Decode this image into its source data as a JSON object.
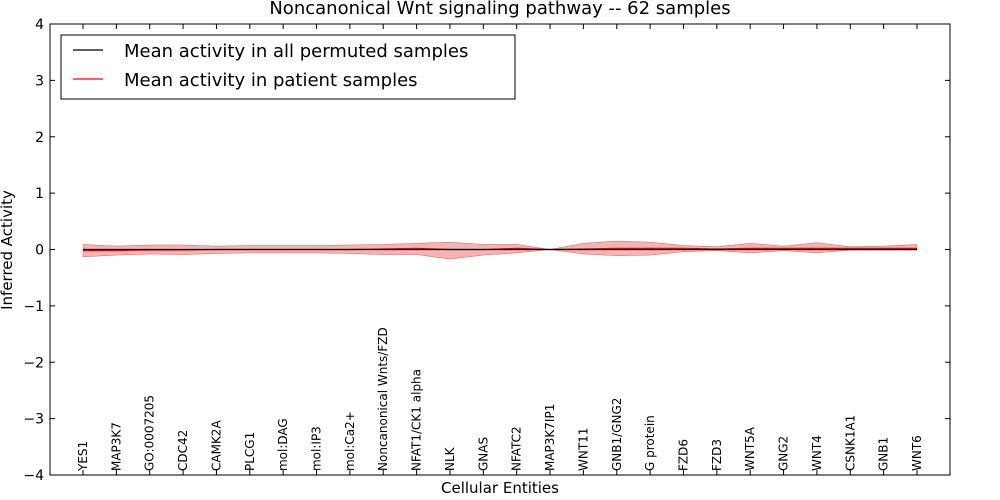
{
  "chart_data": {
    "type": "line",
    "title": "Noncanonical Wnt signaling pathway -- 62 samples",
    "xlabel": "Cellular Entities",
    "ylabel": "Inferred Activity",
    "ylim": [
      -4,
      4
    ],
    "yticks": [
      -4,
      -3,
      -2,
      -1,
      0,
      1,
      2,
      3,
      4
    ],
    "ytick_labels": [
      "−4",
      "−3",
      "−2",
      "−1",
      "0",
      "1",
      "2",
      "3",
      "4"
    ],
    "categories": [
      "YES1",
      "MAP3K7",
      "GO:0007205",
      "CDC42",
      "CAMK2A",
      "PLCG1",
      "mol:DAG",
      "mol:IP3",
      "mol:Ca2+",
      "Noncanonical Wnts/FZD",
      "NFAT1/CK1 alpha",
      "NLK",
      "GNAS",
      "NFATC2",
      "MAP3K7IP1",
      "WNT11",
      "GNB1/GNG2",
      "G protein",
      "FZD6",
      "FZD3",
      "WNT5A",
      "GNG2",
      "WNT4",
      "CSNK1A1",
      "GNB1",
      "WNT6"
    ],
    "legend_position": "top-left",
    "series": [
      {
        "name": "Mean activity in all permuted samples",
        "color": "#000000",
        "values": [
          0,
          0,
          0,
          0,
          0,
          0,
          0,
          0,
          0,
          0,
          0,
          0,
          0,
          0,
          0,
          0,
          0,
          0,
          0,
          0,
          0,
          0,
          0,
          0,
          0,
          0
        ]
      },
      {
        "name": "Mean activity in patient samples",
        "color": "#ff0000",
        "values": [
          -0.02,
          -0.02,
          -0.01,
          -0.01,
          0.0,
          0.0,
          0.0,
          0.0,
          0.0,
          0.01,
          0.02,
          0.0,
          0.0,
          0.02,
          0.0,
          0.01,
          0.02,
          0.02,
          0.02,
          0.01,
          0.02,
          0.02,
          0.02,
          0.02,
          0.02,
          0.02
        ],
        "band_lower": [
          -0.13,
          -0.1,
          -0.08,
          -0.09,
          -0.07,
          -0.06,
          -0.06,
          -0.06,
          -0.07,
          -0.09,
          -0.09,
          -0.17,
          -0.1,
          -0.06,
          0.0,
          -0.08,
          -0.11,
          -0.1,
          -0.04,
          -0.02,
          -0.06,
          -0.02,
          -0.06,
          -0.01,
          -0.01,
          -0.01
        ],
        "band_upper": [
          0.09,
          0.06,
          0.08,
          0.08,
          0.06,
          0.07,
          0.07,
          0.07,
          0.08,
          0.09,
          0.11,
          0.13,
          0.09,
          0.09,
          0.0,
          0.11,
          0.15,
          0.13,
          0.07,
          0.05,
          0.11,
          0.06,
          0.12,
          0.05,
          0.06,
          0.09
        ],
        "band_color": "#f08080"
      }
    ]
  }
}
